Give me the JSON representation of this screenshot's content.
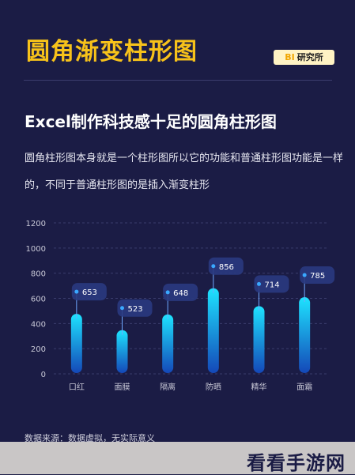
{
  "header": {
    "title": "圆角渐变柱形图",
    "badge_prefix": "BI",
    "badge_text": "研究所"
  },
  "subtitle": "Excel制作科技感十足的圆角柱形图",
  "description": "圆角柱形图本身就是一个柱形图所以它的功能和普通柱形图功能是一样的，不同于普通柱形图的是插入渐变柱形",
  "source_note": "数据来源：数据虚拟，无实际意义",
  "watermark": "看看手游网",
  "colors": {
    "background": "#1b1c45",
    "title": "#f7c21a",
    "bar_top": "#1ee3ff",
    "bar_bottom": "#1448b8",
    "label_box": "#2a3a80",
    "point": "#3aa8ff"
  },
  "chart_data": {
    "type": "bar",
    "categories": [
      "口红",
      "面膜",
      "隔离",
      "防晒",
      "精华",
      "面霜"
    ],
    "values": [
      653,
      523,
      648,
      856,
      714,
      785
    ],
    "title": "",
    "xlabel": "",
    "ylabel": "",
    "ylim": [
      0,
      1200
    ],
    "yticks": [
      0,
      200,
      400,
      600,
      800,
      1000,
      1200
    ],
    "grid": true,
    "legend": "none",
    "bar_style": "rounded-gradient"
  }
}
